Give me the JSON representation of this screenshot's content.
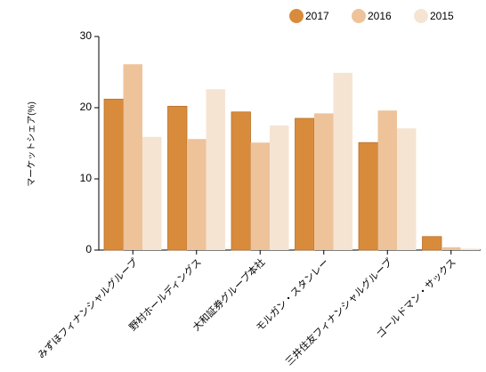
{
  "chart_data": {
    "type": "bar",
    "y_label": "マーケットシェア(%)",
    "categories": [
      "みずほフィナンシャルグループ",
      "野村ホールディングス",
      "大和証券グループ本社",
      "モルガン・スタンレー",
      "三井住友フィナンシャルグループ",
      "ゴールドマン・サックス"
    ],
    "series": [
      {
        "name": "2017",
        "color": "#d98b3c",
        "values": [
          21.2,
          20.2,
          19.4,
          18.5,
          15.1,
          1.9
        ]
      },
      {
        "name": "2016",
        "color": "#eec39a",
        "values": [
          26.1,
          15.6,
          15.1,
          19.2,
          19.6,
          0.4
        ]
      },
      {
        "name": "2015",
        "color": "#f6e4d3",
        "values": [
          15.9,
          22.6,
          17.5,
          24.9,
          17.1,
          0.2
        ]
      }
    ],
    "ylim": [
      0,
      30
    ],
    "yticks": [
      0,
      10,
      20,
      30
    ],
    "legend": "top-right"
  }
}
